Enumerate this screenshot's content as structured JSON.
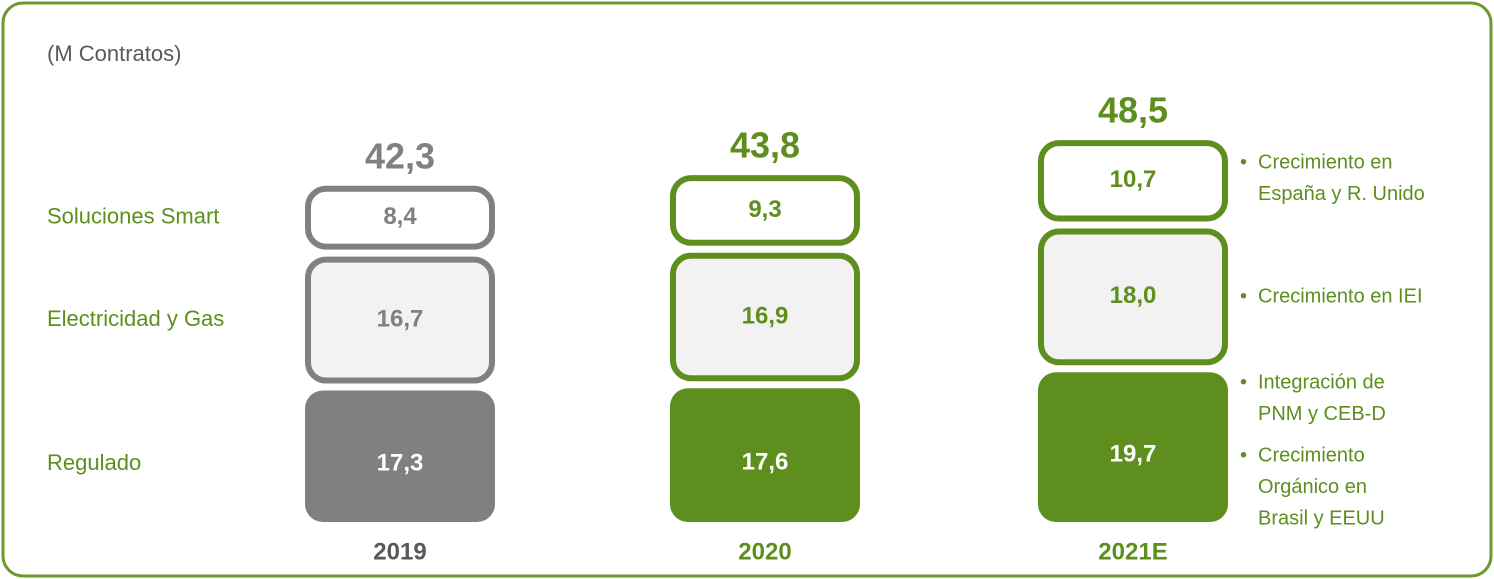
{
  "chart_data": {
    "type": "stacked-bar",
    "subtitle": "(M Contratos)",
    "categories": [
      "2019",
      "2020",
      "2021E"
    ],
    "colors": [
      "#808080",
      "#5e8e1e",
      "#5e8e1e"
    ],
    "series": [
      {
        "name": "Regulado",
        "values": [
          17.3,
          17.6,
          19.7
        ],
        "value_labels": [
          "17,3",
          "17,6",
          "19,7"
        ]
      },
      {
        "name": "Electricidad y Gas",
        "values": [
          16.7,
          16.9,
          18.0
        ],
        "value_labels": [
          "16,7",
          "16,9",
          "18,0"
        ]
      },
      {
        "name": "Soluciones Smart",
        "values": [
          8.4,
          9.3,
          10.7
        ],
        "value_labels": [
          "8,4",
          "9,3",
          "10,7"
        ]
      }
    ],
    "totals": [
      42.3,
      43.8,
      48.5
    ],
    "total_labels": [
      "42,3",
      "43,8",
      "48,5"
    ],
    "annotations": [
      {
        "lines": [
          "Crecimiento en",
          "España y R. Unido"
        ]
      },
      {
        "lines": [
          "Crecimiento en IEI"
        ]
      },
      {
        "lines": [
          "Integración de",
          "PNM y CEB-D"
        ]
      },
      {
        "lines": [
          "Crecimiento",
          "Orgánico en",
          "Brasil y EEUU"
        ]
      }
    ]
  }
}
